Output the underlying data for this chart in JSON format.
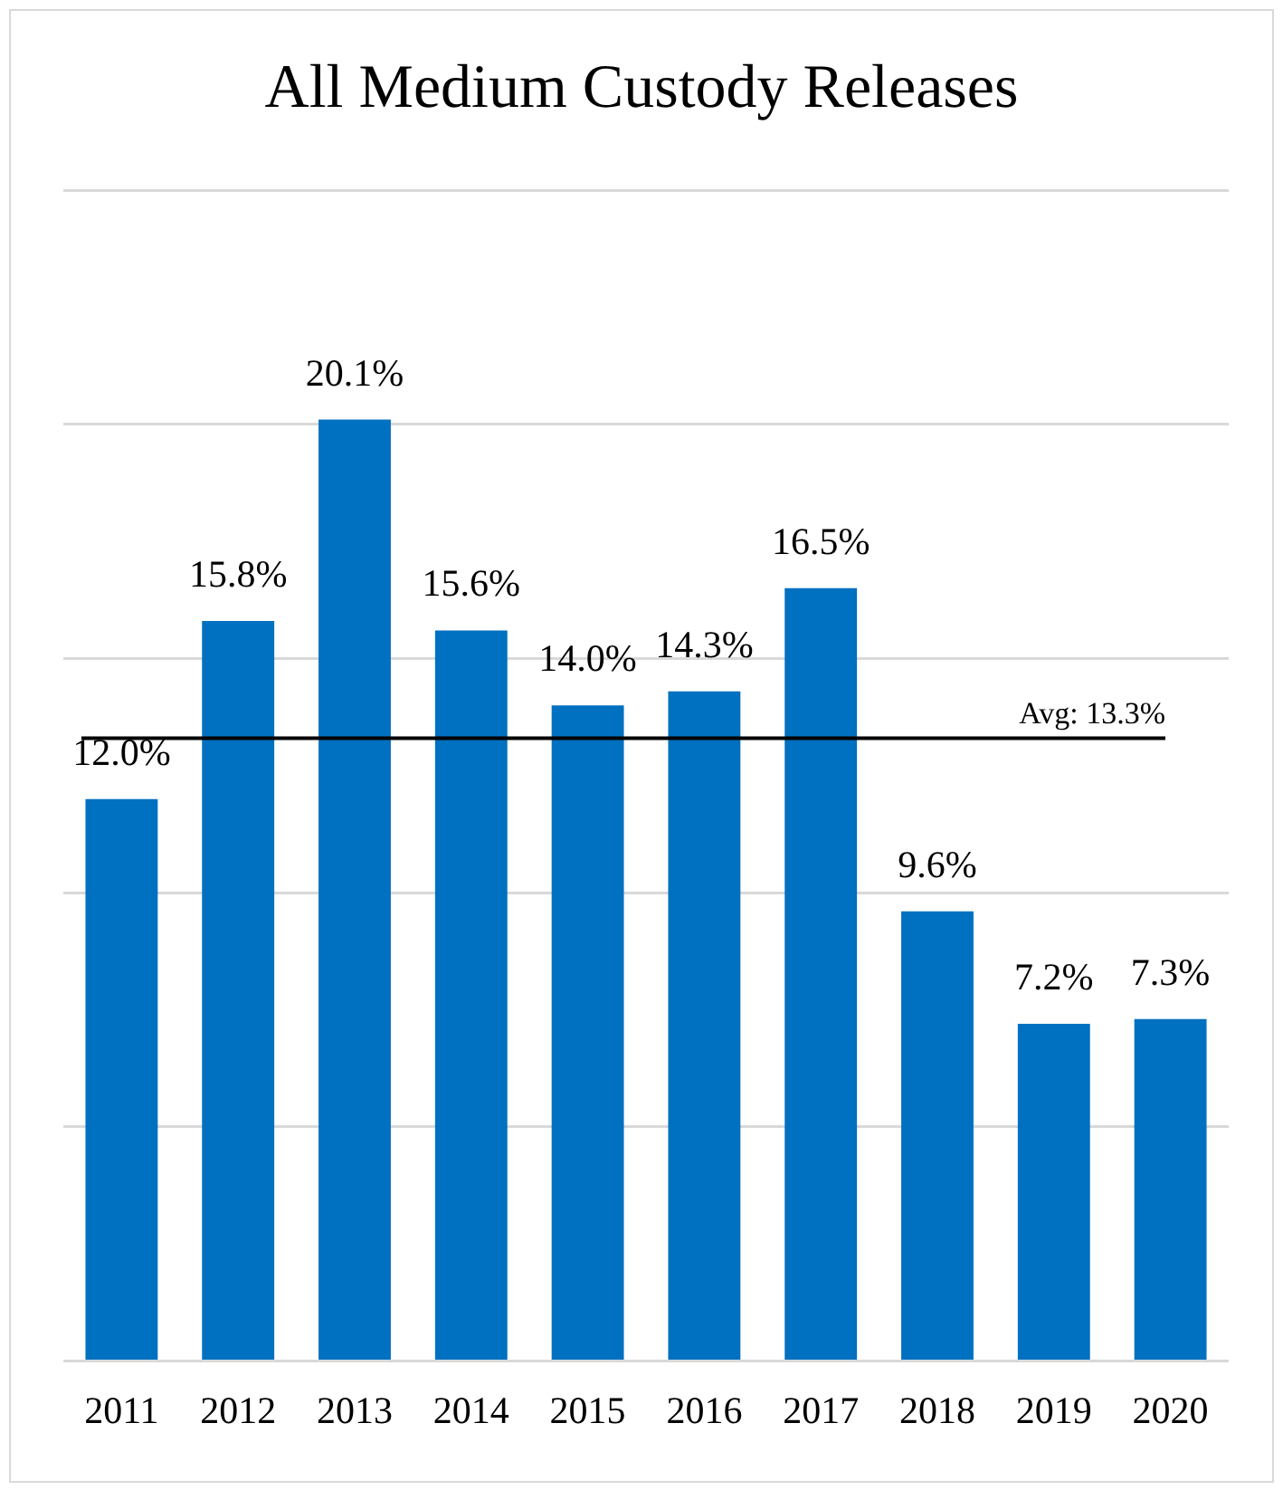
{
  "chart_data": {
    "type": "bar",
    "title": "All Medium Custody Releases",
    "categories": [
      "2011",
      "2012",
      "2013",
      "2014",
      "2015",
      "2016",
      "2017",
      "2018",
      "2019",
      "2020"
    ],
    "values": [
      12.0,
      15.8,
      20.1,
      15.6,
      14.0,
      14.3,
      16.5,
      9.6,
      7.2,
      7.3
    ],
    "value_labels": [
      "12.0%",
      "15.8%",
      "20.1%",
      "15.6%",
      "14.0%",
      "14.3%",
      "16.5%",
      "9.6%",
      "7.2%",
      "7.3%"
    ],
    "color": "#0070c0",
    "ylim": [
      0,
      25
    ],
    "yticks": [
      {
        "value": 0,
        "label": null
      },
      {
        "value": 5,
        "label": null
      },
      {
        "value": 10,
        "label": null
      },
      {
        "value": 15,
        "label": null
      },
      {
        "value": 20,
        "label": null
      },
      {
        "value": 25,
        "label": null
      }
    ],
    "tick_labels": "x",
    "grid": "y",
    "legend": false,
    "ref_lines": [
      {
        "axis": "y",
        "value": 13.3,
        "label": "Avg: 13.3%",
        "color": "#000000"
      }
    ]
  }
}
